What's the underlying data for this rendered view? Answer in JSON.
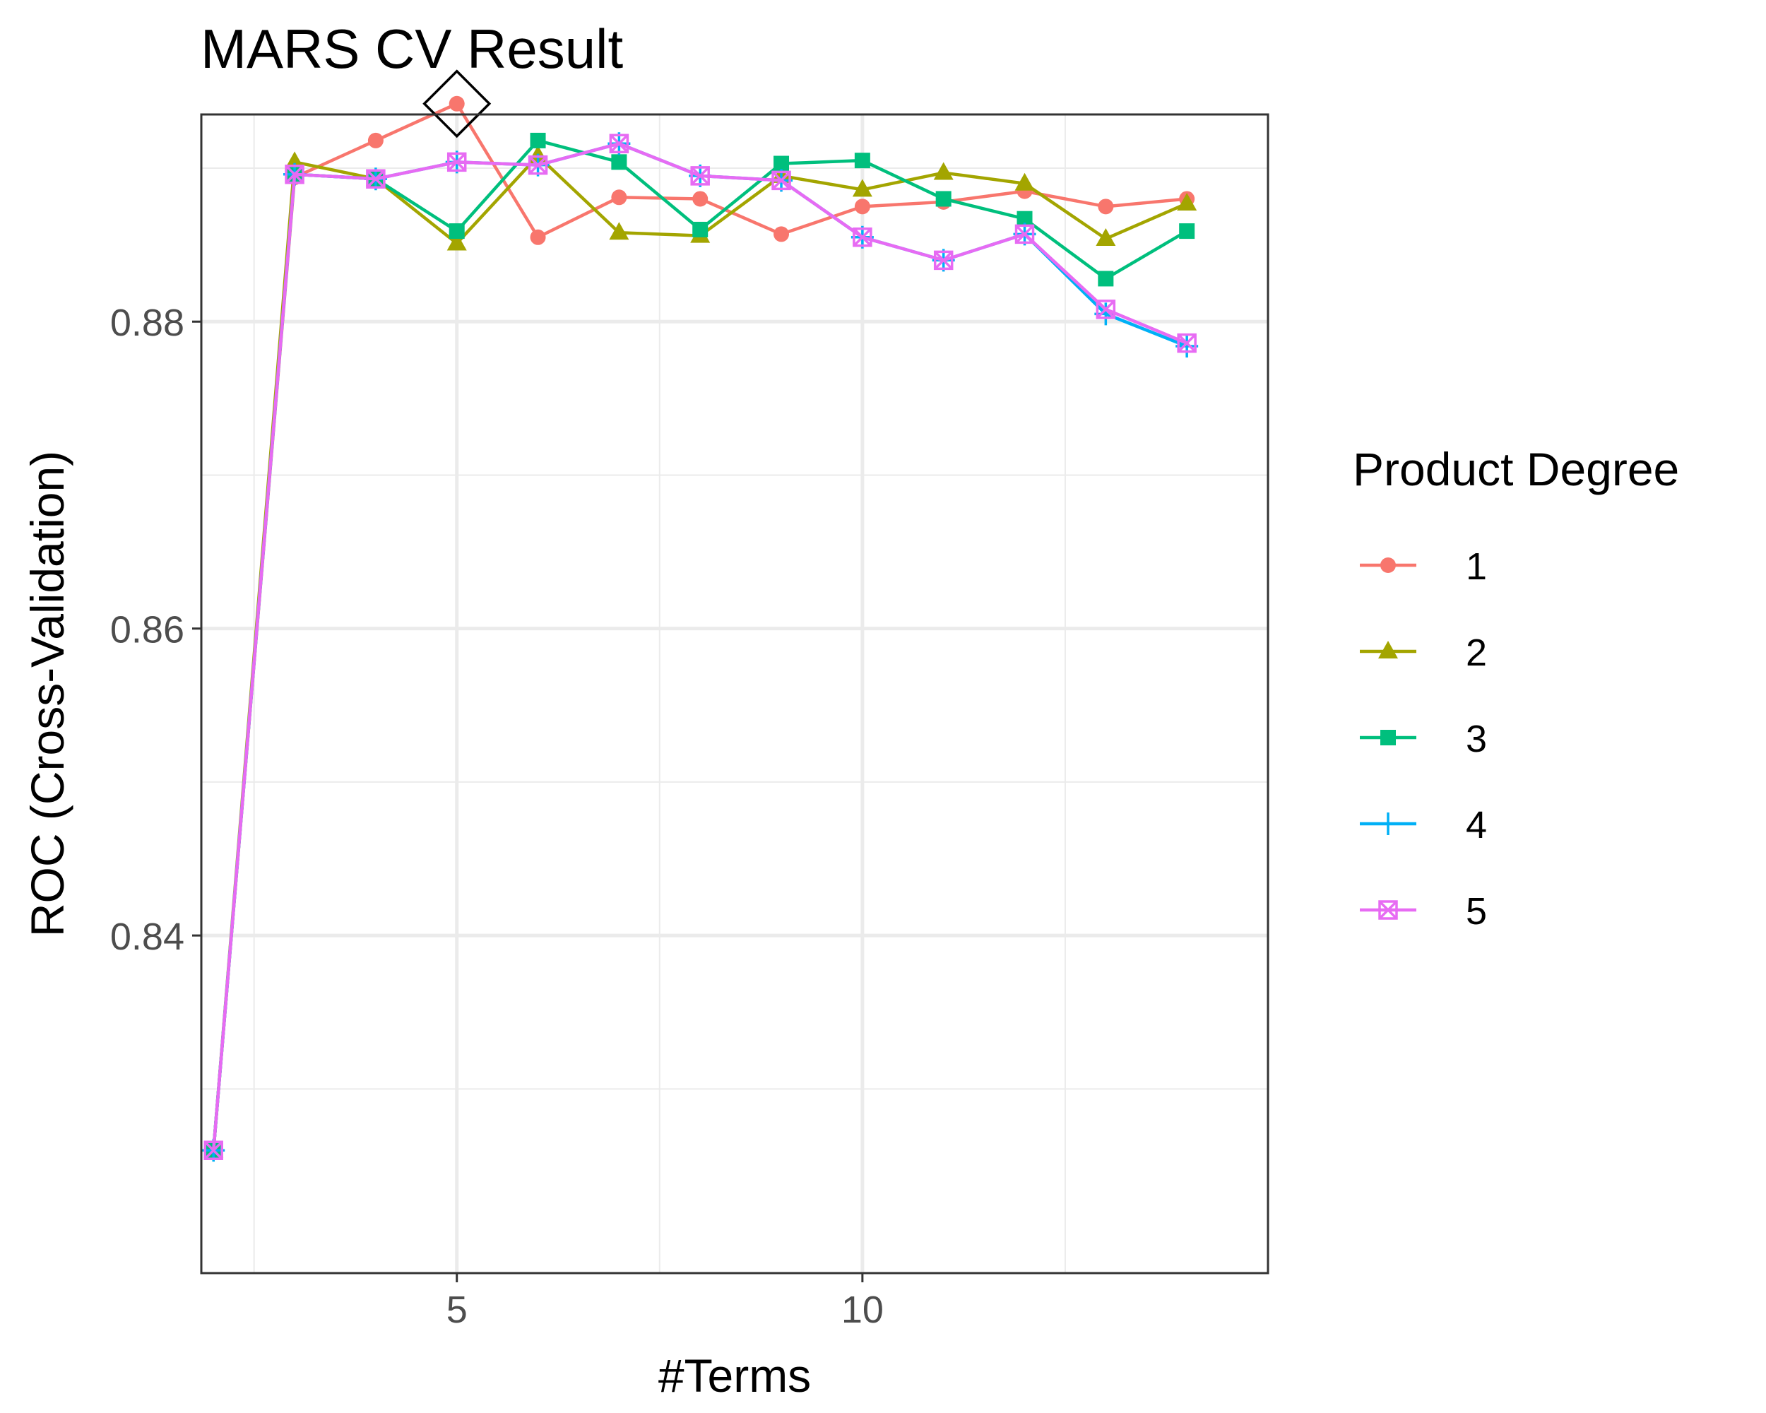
{
  "chart_data": {
    "type": "line",
    "title": "MARS CV Result",
    "xlabel": "#Terms",
    "ylabel": "ROC (Cross-Validation)",
    "xlim": [
      1.85,
      15.0
    ],
    "ylim": [
      0.818,
      0.8935
    ],
    "x_major_ticks": [
      5,
      10
    ],
    "x_minor_ticks": [
      2.5,
      7.5,
      12.5
    ],
    "y_major_ticks": [
      0.84,
      0.86,
      0.88
    ],
    "y_minor_ticks": [
      0.83,
      0.85,
      0.87,
      0.89
    ],
    "x_tick_labels": [
      "5",
      "10"
    ],
    "y_tick_labels": [
      "0.84",
      "0.86",
      "0.88"
    ],
    "grid": true,
    "legend": {
      "title": "Product Degree",
      "position": "right",
      "entries": [
        "1",
        "2",
        "3",
        "4",
        "5"
      ]
    },
    "x": [
      2,
      3,
      4,
      5,
      6,
      7,
      8,
      9,
      10,
      11,
      12,
      13,
      14
    ],
    "series": [
      {
        "name": "1",
        "color": "#F8766D",
        "shape": "circle",
        "values": [
          0.826,
          0.8894,
          0.8918,
          0.8942,
          0.8855,
          0.8881,
          0.888,
          0.8857,
          0.8875,
          0.8878,
          0.8885,
          0.8875,
          0.888
        ]
      },
      {
        "name": "2",
        "color": "#A3A500",
        "shape": "triangle",
        "values": [
          0.826,
          0.8904,
          0.8893,
          0.8851,
          0.8908,
          0.8858,
          0.8856,
          0.8895,
          0.8886,
          0.8897,
          0.889,
          0.8854,
          0.8877
        ]
      },
      {
        "name": "3",
        "color": "#00BF7D",
        "shape": "square",
        "values": [
          0.826,
          0.8896,
          0.8893,
          0.8859,
          0.8918,
          0.8904,
          0.886,
          0.8903,
          0.8905,
          0.888,
          0.8867,
          0.8828,
          0.8859
        ]
      },
      {
        "name": "4",
        "color": "#00B0F6",
        "shape": "plus",
        "values": [
          0.826,
          0.8896,
          0.8893,
          0.8904,
          0.8902,
          0.8916,
          0.8895,
          0.8892,
          0.8855,
          0.884,
          0.8857,
          0.8805,
          0.8784
        ]
      },
      {
        "name": "5",
        "color": "#E76BF3",
        "shape": "square-cross",
        "values": [
          0.826,
          0.8896,
          0.8893,
          0.8904,
          0.8902,
          0.8916,
          0.8895,
          0.8892,
          0.8855,
          0.884,
          0.8857,
          0.8808,
          0.8786
        ]
      }
    ],
    "annotations": [
      {
        "type": "best-marker",
        "shape": "diamond",
        "x": 5,
        "y": 0.8942
      }
    ]
  }
}
